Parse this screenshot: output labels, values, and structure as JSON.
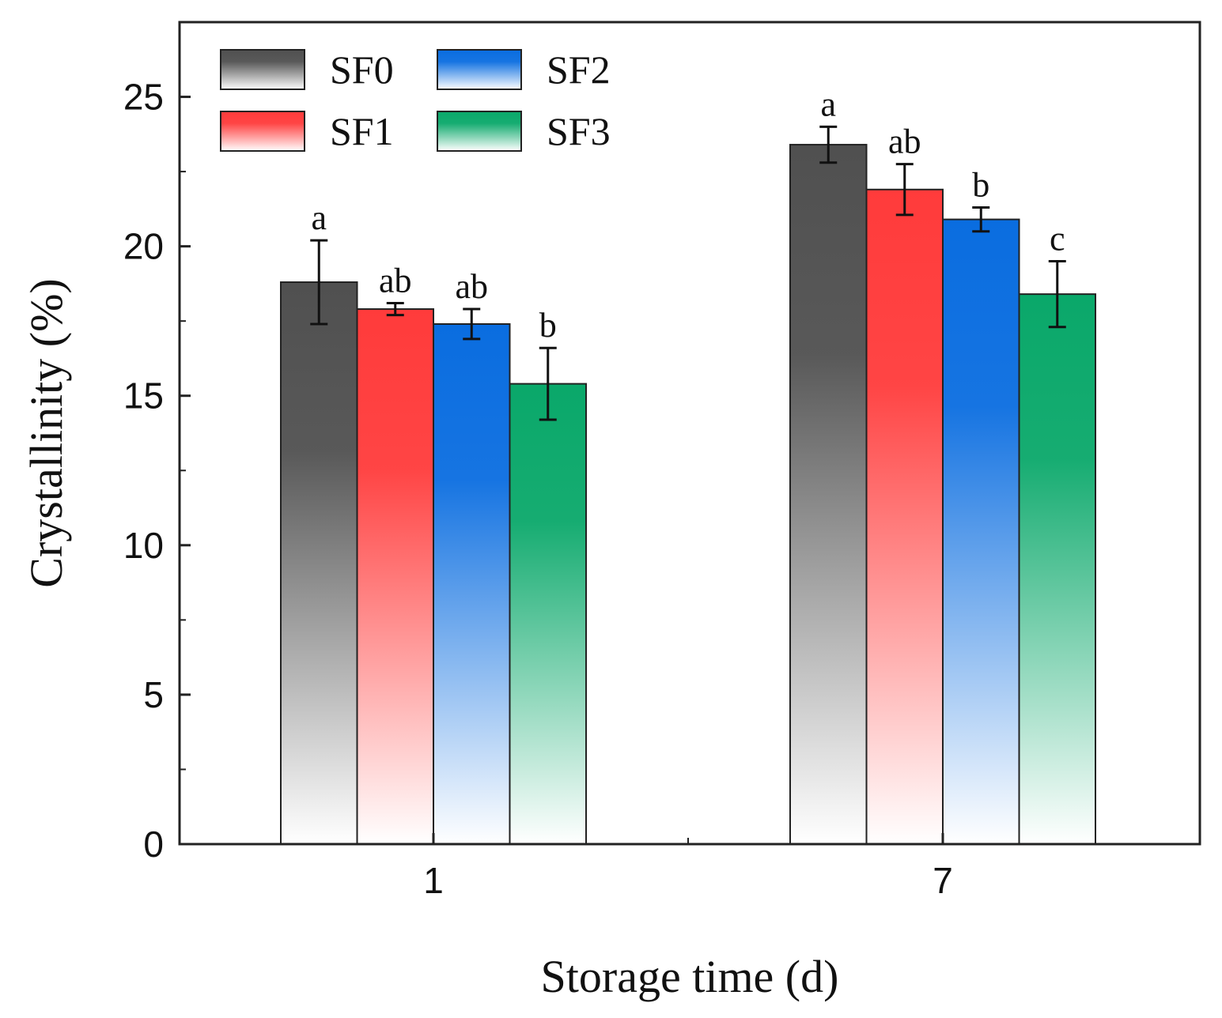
{
  "chart_data": {
    "type": "bar",
    "title": "",
    "xlabel": "Storage time (d)",
    "ylabel": "Crystallinity (%)",
    "ylim": [
      0,
      27.5
    ],
    "yticks": [
      "0",
      "5",
      "10",
      "15",
      "20",
      "25"
    ],
    "categories": [
      "1",
      "7"
    ],
    "legend_position": "top-left",
    "series": [
      {
        "name": "SF0",
        "color": "#505050",
        "values": [
          18.8,
          23.4
        ],
        "errors": [
          1.4,
          0.6
        ],
        "labels": [
          "a",
          "a"
        ]
      },
      {
        "name": "SF1",
        "color": "#ff3b3b",
        "values": [
          17.9,
          21.9
        ],
        "errors": [
          0.2,
          0.85
        ],
        "labels": [
          "ab",
          "ab"
        ]
      },
      {
        "name": "SF2",
        "color": "#0a6de0",
        "values": [
          17.4,
          20.9
        ],
        "errors": [
          0.5,
          0.4
        ],
        "labels": [
          "ab",
          "b"
        ]
      },
      {
        "name": "SF3",
        "color": "#0aa86a",
        "values": [
          15.4,
          18.4
        ],
        "errors": [
          1.2,
          1.1
        ],
        "labels": [
          "b",
          "c"
        ]
      }
    ]
  }
}
